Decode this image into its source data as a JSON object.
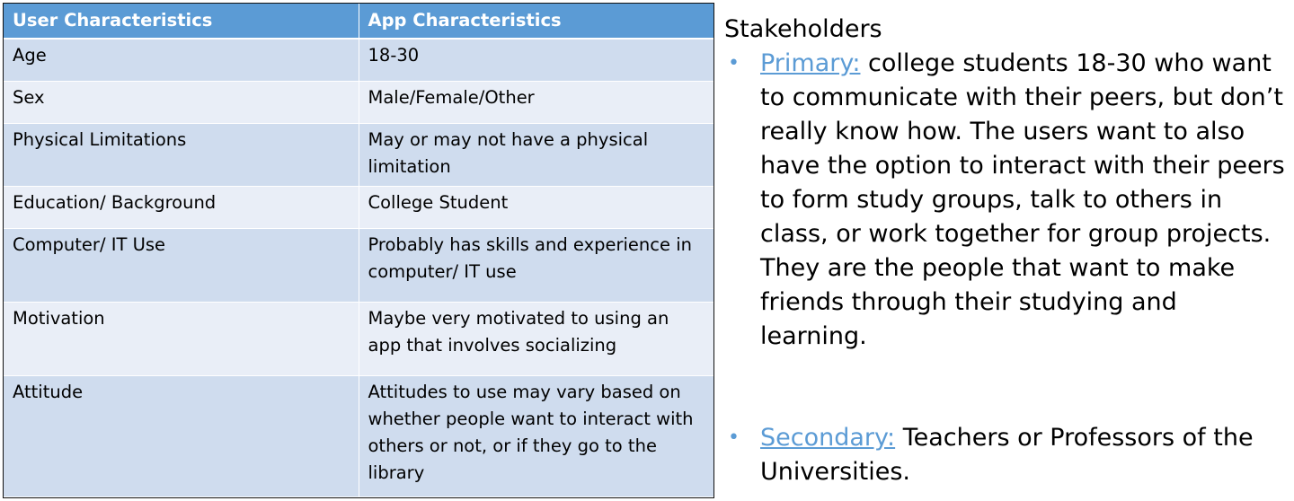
{
  "table": {
    "headers": [
      "User Characteristics",
      "App Characteristics"
    ],
    "rows": [
      {
        "user": "Age",
        "app": "18-30"
      },
      {
        "user": "Sex",
        "app": "Male/Female/Other"
      },
      {
        "user": "Physical Limitations",
        "app": "May or may not have a physical limitation"
      },
      {
        "user": "Education/ Background",
        "app": "College Student"
      },
      {
        "user": "Computer/ IT Use",
        "app": "Probably has skills and experience in computer/ IT use"
      },
      {
        "user": "Motivation",
        "app": "Maybe very motivated to using an app that involves socializing"
      },
      {
        "user": "Attitude",
        "app": "Attitudes to use may vary based on whether people want to interact with others or not, or if they go to the library"
      }
    ]
  },
  "stakeholders": {
    "title": "Stakeholders",
    "bullet_glyph": "•",
    "primary": {
      "label": "Primary:",
      "text": " college students 18-30 who want to communicate with their peers, but don’t really know how. The users want to also have the option to interact with their peers to form study groups, talk to others in class, or work together for group projects. They are the people that want to make friends through their studying and learning."
    },
    "secondary": {
      "label": "Secondary:",
      "text": " Teachers or Professors of the Universities."
    }
  },
  "colors": {
    "header_bg": "#5b9bd5",
    "row_odd": "#cfdcee",
    "row_even": "#e9eef7",
    "label_accent": "#5b9bd5"
  }
}
